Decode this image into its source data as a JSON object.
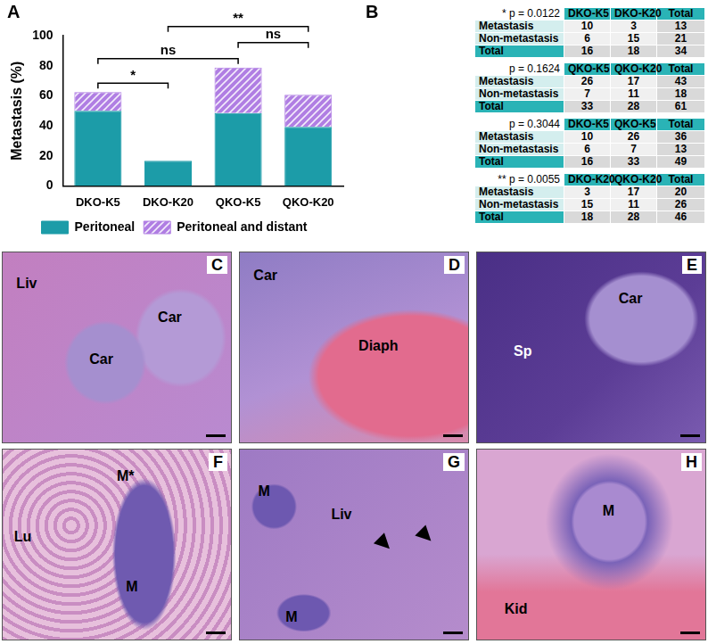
{
  "chart_data": {
    "type": "bar",
    "panel": "A",
    "categories": [
      "DKO-K5",
      "DKO-K20",
      "QKO-K5",
      "QKO-K20"
    ],
    "series": [
      {
        "name": "Peritoneal",
        "color": "#1c9ca8",
        "values": [
          50,
          16.7,
          48.5,
          39.3
        ]
      },
      {
        "name": "Peritoneal and distant",
        "color": "#b07ee3",
        "values": [
          12.5,
          0,
          30.3,
          21.4
        ]
      }
    ],
    "stacked": true,
    "ylabel": "Metastasis (%)",
    "ylim": [
      0,
      100
    ],
    "yticks": [
      0,
      20,
      40,
      60,
      80,
      100
    ],
    "grid": false,
    "legend": "bottom",
    "comparisons": [
      {
        "from": "DKO-K5",
        "to": "DKO-K20",
        "label": "*"
      },
      {
        "from": "DKO-K5",
        "to": "QKO-K5",
        "label": "ns"
      },
      {
        "from": "QKO-K5",
        "to": "QKO-K20",
        "label": "ns"
      },
      {
        "from": "DKO-K20",
        "to": "QKO-K20",
        "label": "**"
      }
    ]
  },
  "tables": {
    "panel": "B",
    "items": [
      {
        "p_label": "* p = 0.0122",
        "columns": [
          "DKO-K5",
          "DKO-K20",
          "Total"
        ],
        "rows": [
          {
            "label": "Metastasis",
            "values": [
              10,
              3,
              13
            ]
          },
          {
            "label": "Non-metastasis",
            "values": [
              6,
              15,
              21
            ]
          },
          {
            "label": "Total",
            "values": [
              16,
              18,
              34
            ]
          }
        ]
      },
      {
        "p_label": "p = 0.1624",
        "columns": [
          "QKO-K5",
          "QKO-K20",
          "Total"
        ],
        "rows": [
          {
            "label": "Metastasis",
            "values": [
              26,
              17,
              43
            ]
          },
          {
            "label": "Non-metastasis",
            "values": [
              7,
              11,
              18
            ]
          },
          {
            "label": "Total",
            "values": [
              33,
              28,
              61
            ]
          }
        ]
      },
      {
        "p_label": "p = 0.3044",
        "columns": [
          "DKO-K5",
          "QKO-K5",
          "Total"
        ],
        "rows": [
          {
            "label": "Metastasis",
            "values": [
              10,
              26,
              36
            ]
          },
          {
            "label": "Non-metastasis",
            "values": [
              6,
              7,
              13
            ]
          },
          {
            "label": "Total",
            "values": [
              16,
              33,
              49
            ]
          }
        ]
      },
      {
        "p_label": "** p = 0.0055",
        "columns": [
          "DKO-K20",
          "QKO-K20",
          "Total"
        ],
        "rows": [
          {
            "label": "Metastasis",
            "values": [
              3,
              17,
              20
            ]
          },
          {
            "label": "Non-metastasis",
            "values": [
              15,
              11,
              26
            ]
          },
          {
            "label": "Total",
            "values": [
              18,
              28,
              46
            ]
          }
        ]
      }
    ]
  },
  "images": [
    {
      "panel": "C",
      "labels": [
        "Liv",
        "Car",
        "Car"
      ]
    },
    {
      "panel": "D",
      "labels": [
        "Car",
        "Diaph"
      ]
    },
    {
      "panel": "E",
      "labels": [
        "Sp",
        "Car"
      ]
    },
    {
      "panel": "F",
      "labels": [
        "Lu",
        "M*",
        "M"
      ]
    },
    {
      "panel": "G",
      "labels": [
        "M",
        "Liv",
        "M"
      ]
    },
    {
      "panel": "H",
      "labels": [
        "M",
        "Kid"
      ]
    }
  ]
}
